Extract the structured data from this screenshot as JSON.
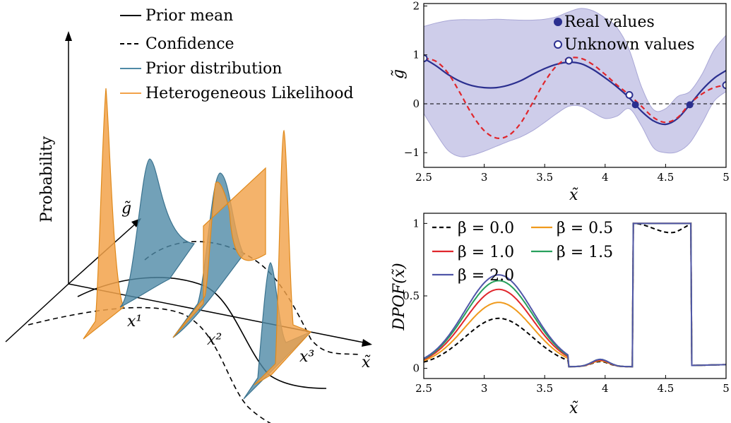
{
  "colors": {
    "navy": "#2b2f8f",
    "red": "#e0262c",
    "band": "#c5c4e6",
    "prior_blue": "#4f8aa6",
    "likelihood_orange": "#f2a24a",
    "orange_line": "#f09a1c",
    "green": "#27a05c",
    "purple": "#5056a8"
  },
  "left_panel": {
    "legend": [
      {
        "label": "Prior mean",
        "style": "solid",
        "color": "#000000"
      },
      {
        "label": "Confidence",
        "style": "dashed",
        "color": "#000000"
      },
      {
        "label": "Prior distribution",
        "style": "solid",
        "color": "#4f8aa6"
      },
      {
        "label": "Heterogeneous Likelihood",
        "style": "solid",
        "color": "#f2a24a"
      }
    ],
    "axis_labels": {
      "vertical": "Probability",
      "depth": "g̃",
      "horizontal": "x̃"
    },
    "point_labels": [
      "x¹",
      "x²",
      "x³"
    ]
  },
  "chart_data": [
    {
      "type": "line",
      "xlabel": "x̃",
      "ylabel": "g̃",
      "xlim": [
        2.5,
        5.0
      ],
      "ylim": [
        -1.3,
        2.05
      ],
      "xticks": [
        "2.5",
        "3",
        "3.5",
        "4",
        "4.5",
        "5"
      ],
      "yticks": [
        "−1",
        "0",
        "1",
        "2"
      ],
      "x": [
        2.5,
        2.6,
        2.7,
        2.8,
        2.9,
        3.0,
        3.1,
        3.2,
        3.3,
        3.4,
        3.5,
        3.6,
        3.7,
        3.8,
        3.9,
        4.0,
        4.1,
        4.2,
        4.3,
        4.4,
        4.5,
        4.6,
        4.7,
        4.8,
        4.9,
        5.0
      ],
      "series": [
        {
          "role": "mean",
          "color": "#2b2f8f",
          "style": "solid",
          "values": [
            0.93,
            0.78,
            0.6,
            0.46,
            0.37,
            0.33,
            0.33,
            0.38,
            0.47,
            0.6,
            0.72,
            0.81,
            0.85,
            0.82,
            0.7,
            0.53,
            0.34,
            0.12,
            -0.15,
            -0.35,
            -0.42,
            -0.3,
            -0.02,
            0.28,
            0.52,
            0.68
          ]
        },
        {
          "role": "sample",
          "color": "#e0262c",
          "style": "dashed",
          "values": [
            0.93,
            0.87,
            0.63,
            0.22,
            -0.22,
            -0.55,
            -0.7,
            -0.65,
            -0.4,
            0.02,
            0.45,
            0.78,
            0.93,
            0.93,
            0.8,
            0.6,
            0.38,
            0.18,
            -0.05,
            -0.28,
            -0.38,
            -0.28,
            0.0,
            0.2,
            0.33,
            0.38
          ]
        },
        {
          "role": "confidence-upper",
          "color": "#c5c4e6",
          "values": [
            1.58,
            1.65,
            1.7,
            1.72,
            1.72,
            1.72,
            1.73,
            1.72,
            1.71,
            1.71,
            1.73,
            1.78,
            1.88,
            1.95,
            1.9,
            1.75,
            1.55,
            1.1,
            0.35,
            -0.12,
            -0.1,
            0.15,
            0.25,
            0.6,
            1.1,
            1.4
          ]
        },
        {
          "role": "confidence-lower",
          "color": "#c5c4e6",
          "values": [
            -0.2,
            -0.6,
            -0.95,
            -1.08,
            -1.05,
            -0.97,
            -0.87,
            -0.77,
            -0.68,
            -0.55,
            -0.38,
            -0.2,
            -0.05,
            -0.05,
            -0.18,
            -0.3,
            -0.25,
            -0.1,
            -0.45,
            -0.9,
            -1.0,
            -0.98,
            -0.8,
            -0.4,
            0.05,
            0.25
          ]
        }
      ],
      "real_points": [
        [
          4.25,
          -0.02
        ],
        [
          4.7,
          -0.02
        ]
      ],
      "unknown_points": [
        [
          2.5,
          0.93
        ],
        [
          3.7,
          0.88
        ],
        [
          4.2,
          0.18
        ],
        [
          5.0,
          0.38
        ]
      ],
      "zero_line": 0,
      "legend": [
        {
          "label": "Real values",
          "marker": "filled"
        },
        {
          "label": "Unknown values",
          "marker": "open"
        }
      ]
    },
    {
      "type": "line",
      "xlabel": "x̃",
      "ylabel": "DPOF(x̃)",
      "xlim": [
        2.5,
        5.0
      ],
      "ylim": [
        -0.07,
        1.07
      ],
      "xticks": [
        "2.5",
        "3",
        "3.5",
        "4",
        "4.5",
        "5"
      ],
      "yticks": [
        "0",
        "0.5",
        "1"
      ],
      "series": [
        {
          "name": "β = 0.0",
          "color": "#000000",
          "style": "dashed",
          "peak": 0.33,
          "hump": 0.035,
          "plateau": "dip"
        },
        {
          "name": "β = 0.5",
          "color": "#f09a1c",
          "style": "solid",
          "peak": 0.44,
          "hump": 0.04,
          "plateau": "flat"
        },
        {
          "name": "β = 1.0",
          "color": "#e0262c",
          "style": "solid",
          "peak": 0.53,
          "hump": 0.045,
          "plateau": "flat"
        },
        {
          "name": "β = 1.5",
          "color": "#27a05c",
          "style": "solid",
          "peak": 0.59,
          "hump": 0.05,
          "plateau": "flat"
        },
        {
          "name": "β = 2.0",
          "color": "#5056a8",
          "style": "solid",
          "peak": 0.63,
          "hump": 0.05,
          "plateau": "flat"
        }
      ]
    }
  ]
}
